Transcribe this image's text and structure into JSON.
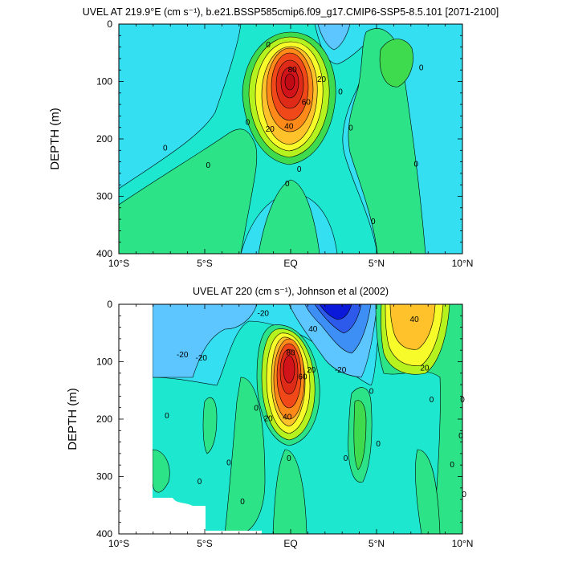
{
  "chart_data": [
    {
      "type": "contour",
      "title": "UVEL AT 219.9°E (cm s⁻¹), b.e21.BSSP585cmip6.f09_g17.CMIP6-SSP5-8.5.101 [2071-2100]",
      "ylabel": "DEPTH (m)",
      "x_tick_labels": [
        "10°S",
        "5°S",
        "EQ",
        "5°N",
        "10°N"
      ],
      "y_ticks": [
        0,
        100,
        200,
        300,
        400
      ],
      "xlim": [
        -10,
        10
      ],
      "ylim": [
        400,
        0
      ],
      "contour_interval": 10,
      "core_max_value": 80,
      "core_latitude": 0,
      "core_depth": 100,
      "contour_labels": [
        {
          "lat": -1.3,
          "depth": 35,
          "text": "0"
        },
        {
          "lat": 0.1,
          "depth": 78,
          "text": "80"
        },
        {
          "lat": 1.8,
          "depth": 95,
          "text": "20"
        },
        {
          "lat": 0.9,
          "depth": 135,
          "text": "60"
        },
        {
          "lat": -1.2,
          "depth": 182,
          "text": "20"
        },
        {
          "lat": -2.5,
          "depth": 170,
          "text": "0"
        },
        {
          "lat": -0.1,
          "depth": 177,
          "text": "40"
        },
        {
          "lat": -7.3,
          "depth": 215,
          "text": "0"
        },
        {
          "lat": -4.8,
          "depth": 245,
          "text": "0"
        },
        {
          "lat": 0.5,
          "depth": 252,
          "text": "0"
        },
        {
          "lat": -0.2,
          "depth": 277,
          "text": "0"
        },
        {
          "lat": 2.9,
          "depth": 117,
          "text": "0"
        },
        {
          "lat": 3.5,
          "depth": 180,
          "text": "0"
        },
        {
          "lat": 7.6,
          "depth": 75,
          "text": "0"
        },
        {
          "lat": 7.3,
          "depth": 243,
          "text": "0"
        },
        {
          "lat": 4.8,
          "depth": 343,
          "text": "0"
        }
      ]
    },
    {
      "type": "contour",
      "title": "UVEL AT 220 (cm s⁻¹), Johnson et al (2002)",
      "ylabel": "DEPTH (m)",
      "x_tick_labels": [
        "10°S",
        "5°S",
        "EQ",
        "5°N",
        "10°N"
      ],
      "y_ticks": [
        0,
        100,
        200,
        300,
        400
      ],
      "xlim": [
        -10,
        10
      ],
      "ylim": [
        400,
        0
      ],
      "contour_interval": 10,
      "core_max_value": 80,
      "core_latitude": 0,
      "core_depth": 110,
      "contour_labels": [
        {
          "lat": -1.6,
          "depth": 15,
          "text": "-20"
        },
        {
          "lat": 1.3,
          "depth": 42,
          "text": "40"
        },
        {
          "lat": 7.2,
          "depth": 25,
          "text": "40"
        },
        {
          "lat": -6.3,
          "depth": 87,
          "text": "-20"
        },
        {
          "lat": -5.2,
          "depth": 92,
          "text": "-20"
        },
        {
          "lat": 0,
          "depth": 83,
          "text": "80"
        },
        {
          "lat": 2.9,
          "depth": 113,
          "text": "-20"
        },
        {
          "lat": 1.2,
          "depth": 113,
          "text": "20"
        },
        {
          "lat": 0.7,
          "depth": 125,
          "text": "60"
        },
        {
          "lat": 7.8,
          "depth": 110,
          "text": "20"
        },
        {
          "lat": 4.7,
          "depth": 150,
          "text": "0"
        },
        {
          "lat": -0.2,
          "depth": 195,
          "text": "40"
        },
        {
          "lat": -1.3,
          "depth": 198,
          "text": "20"
        },
        {
          "lat": -2.0,
          "depth": 180,
          "text": "0"
        },
        {
          "lat": -7.2,
          "depth": 193,
          "text": "0"
        },
        {
          "lat": 8.2,
          "depth": 165,
          "text": "0"
        },
        {
          "lat": 10.0,
          "depth": 165,
          "text": "0"
        },
        {
          "lat": -0.1,
          "depth": 267,
          "text": "0"
        },
        {
          "lat": 5.1,
          "depth": 242,
          "text": "0"
        },
        {
          "lat": 3.2,
          "depth": 267,
          "text": "0"
        },
        {
          "lat": 9.9,
          "depth": 228,
          "text": "0"
        },
        {
          "lat": -3.6,
          "depth": 275,
          "text": "0"
        },
        {
          "lat": 9.4,
          "depth": 278,
          "text": "0"
        },
        {
          "lat": -5.3,
          "depth": 308,
          "text": "0"
        },
        {
          "lat": -2.8,
          "depth": 343,
          "text": "0"
        },
        {
          "lat": 10.1,
          "depth": 330,
          "text": "0"
        }
      ]
    }
  ],
  "legend_colors": {
    "neg50": "#0b1ad9",
    "neg40": "#2d5aeb",
    "neg30": "#3d8ef5",
    "neg20": "#5dc6ff",
    "neg10": "#33dff0",
    "zero": "#1de7cf",
    "pos10": "#2de387",
    "pos20": "#3fdb4f",
    "pos30": "#6bec1e",
    "pos40": "#b6f31e",
    "pos50": "#f7fb2a",
    "pos60": "#ffc22a",
    "pos70": "#ff8a1a",
    "pos80": "#f04818",
    "pos90": "#d2141a"
  }
}
